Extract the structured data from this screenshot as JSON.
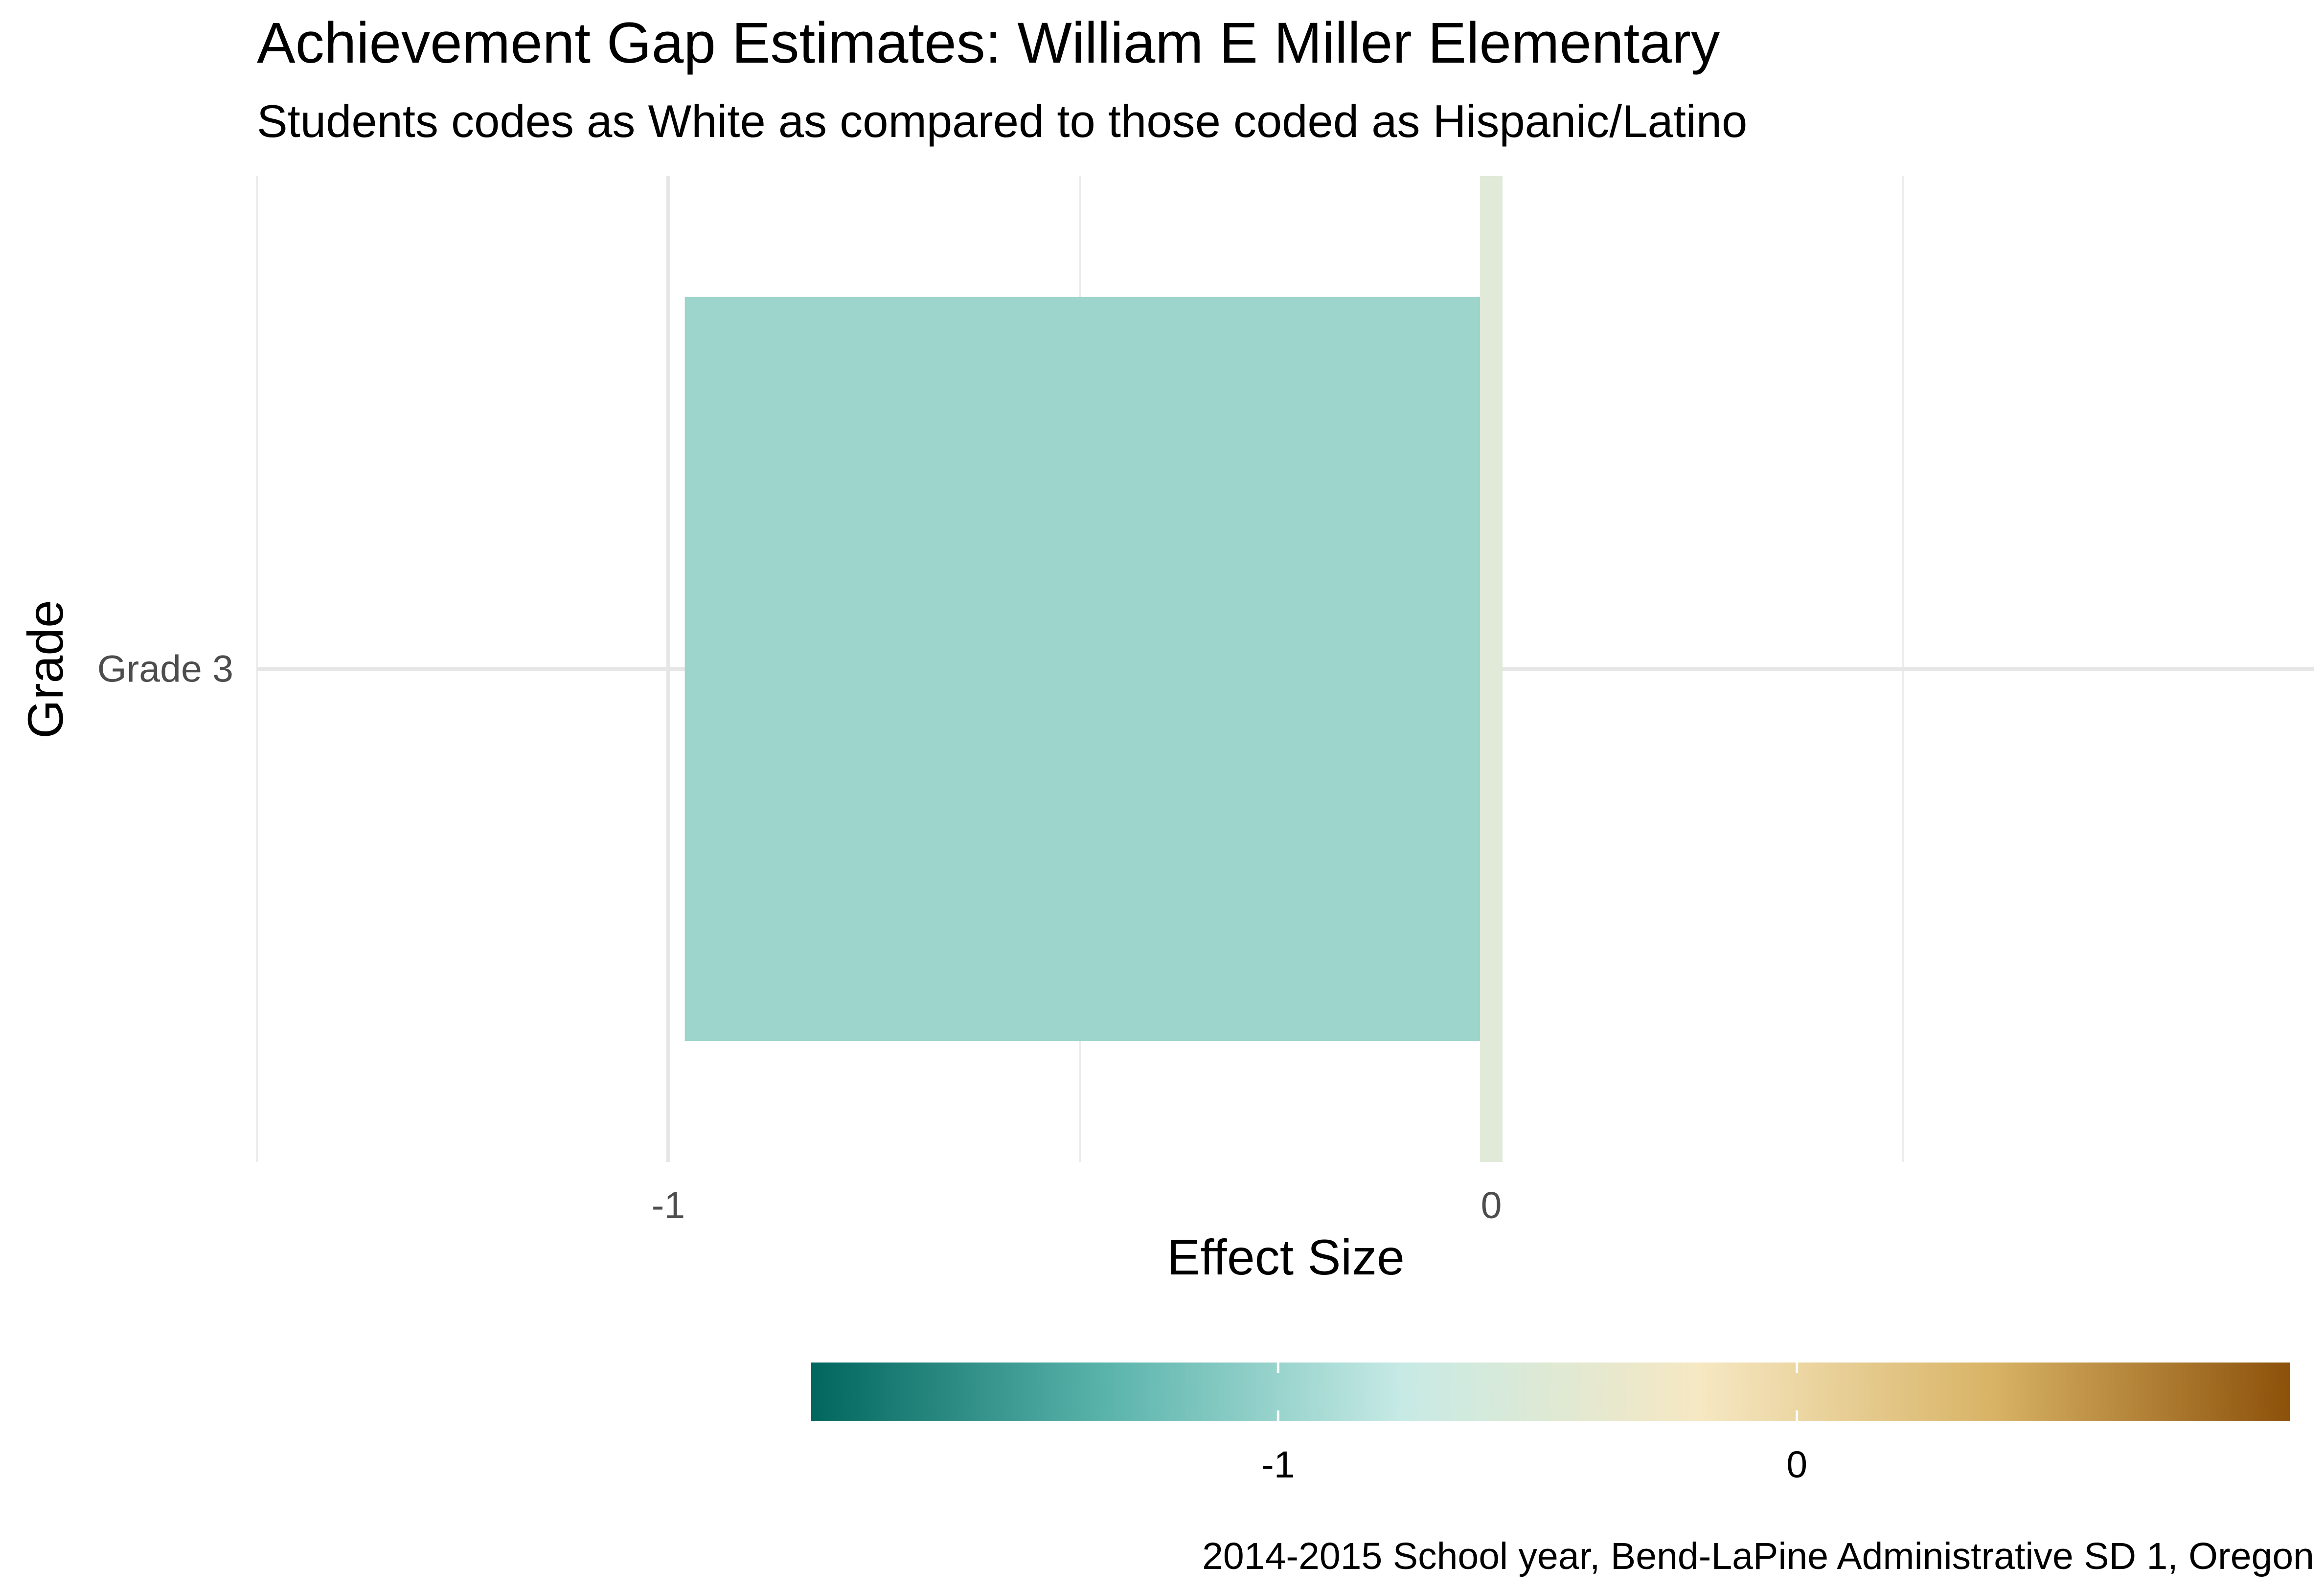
{
  "chart_data": {
    "type": "bar",
    "orientation": "horizontal",
    "title": "Achievement Gap Estimates: William E Miller Elementary",
    "subtitle": "Students codes as White as compared to those coded as Hispanic/Latino",
    "caption": "2014-2015 School year, Bend-LaPine Administrative SD 1, Oregon",
    "xlabel": "Effect Size",
    "ylabel": "Grade",
    "categories": [
      "Grade 3"
    ],
    "values": [
      -0.98
    ],
    "xlim": [
      -1.5,
      1.0
    ],
    "x_ticks": [
      -1,
      0
    ],
    "x_tick_labels": [
      "-1",
      "0"
    ],
    "x_minor_gridlines": [
      -1.5,
      -0.5,
      0.5
    ],
    "grid": true,
    "reference_line": {
      "x": 0,
      "color": "#e1ead8"
    },
    "bar_color": "#9dd4cc",
    "legend": {
      "type": "colorbar",
      "position": "bottom",
      "range": [
        -1.9,
        0.95
      ],
      "ticks": [
        -1,
        0
      ],
      "tick_labels": [
        "-1",
        "0"
      ],
      "colors": [
        "#01665e",
        "#5ab4ac",
        "#c7eae5",
        "#f6e8c3",
        "#d8b365",
        "#8c510a"
      ]
    }
  }
}
